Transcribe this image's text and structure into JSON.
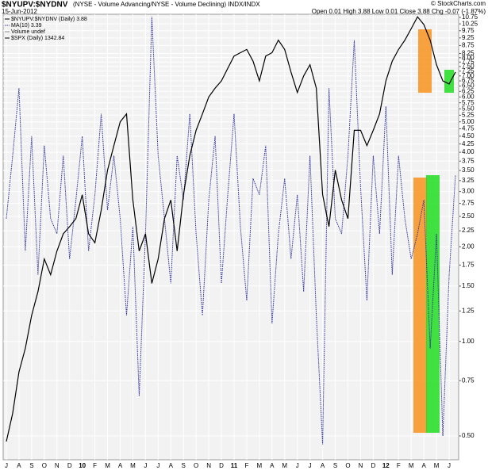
{
  "chart_data": {
    "type": "line",
    "title": "$NYUPV:$NYDNV",
    "subtitle": "(NYSE - Volume Advancing/NYSE - Volume Declining) INDX/INDX",
    "date": "15-Jun-2012",
    "quote": "Open 0.01 High 3.88 Low 0.01 Close 3.88 Chg -0.07 (-1.87%)",
    "source": "© StockCharts.com",
    "legend": [
      "$NYUPV:$NYDNV (Daily) 3.88",
      "Volume undef"
    ],
    "log_scale": true,
    "grid": true,
    "categories": [
      "J",
      null,
      "A",
      null,
      "S",
      null,
      "O",
      null,
      "N",
      null,
      "D",
      null,
      "10",
      null,
      "F",
      null,
      "M",
      null,
      "A",
      null,
      "M",
      null,
      "J",
      null,
      "J",
      null,
      "A",
      null,
      "S",
      null,
      "O",
      null,
      "N",
      null,
      "D",
      null,
      "11",
      null,
      "F",
      null,
      "M",
      null,
      "A",
      null,
      "M",
      null,
      "J",
      null,
      "J",
      null,
      "A",
      null,
      "S",
      null,
      "O",
      null,
      "N",
      null,
      "D",
      null,
      "12",
      null,
      "F",
      null,
      "M",
      null,
      "A",
      null,
      "M",
      null,
      "J",
      null
    ],
    "series": [
      {
        "name": "MA(10) 3.39",
        "color": "#33339a",
        "values": [
          2.46,
          3.9,
          6.4,
          1.94,
          4.5,
          1.63,
          4.2,
          2.46,
          2.2,
          3.9,
          1.83,
          2.82,
          4.5,
          1.94,
          2.93,
          5.3,
          2.62,
          3.9,
          2.46,
          1.21,
          2.32,
          0.67,
          2.2,
          10.8,
          3.9,
          2.46,
          1.53,
          3.9,
          2.82,
          5.3,
          2.2,
          1.21,
          2.82,
          4.5,
          1.53,
          2.93,
          5.3,
          2.32,
          1.35,
          3.3,
          2.93,
          4.2,
          1.14,
          2.2,
          3.3,
          1.83,
          2.93,
          1.44,
          3.9,
          1.21,
          0.47,
          6.4,
          2.46,
          2.2,
          3.9,
          9.1,
          3.1,
          1.35,
          3.9,
          2.2,
          5.6,
          1.63,
          3.9,
          2.46,
          1.83,
          2.2,
          2.82,
          0.95,
          2.2,
          0.5,
          1.63,
          3.39
        ]
      },
      {
        "name": "$SPX (Daily) 1342.84",
        "color": "#000000",
        "values": [
          0.48,
          0.59,
          0.8,
          0.95,
          1.21,
          1.44,
          1.83,
          1.63,
          1.94,
          2.2,
          2.32,
          2.46,
          2.93,
          2.2,
          2.06,
          2.62,
          3.51,
          4.2,
          5.0,
          5.3,
          2.82,
          1.94,
          2.2,
          1.53,
          1.83,
          2.46,
          2.82,
          1.94,
          2.93,
          3.9,
          4.7,
          5.3,
          6.0,
          6.4,
          6.75,
          7.4,
          8.1,
          8.3,
          8.5,
          7.8,
          6.75,
          8.1,
          8.3,
          9.1,
          8.5,
          7.2,
          6.2,
          7.0,
          7.6,
          6.4,
          2.93,
          2.32,
          3.51,
          2.82,
          2.46,
          4.7,
          4.7,
          4.2,
          4.7,
          5.3,
          6.75,
          7.8,
          8.5,
          9.1,
          9.9,
          10.8,
          10.2,
          9.1,
          7.6,
          6.75,
          6.6,
          7.2
        ]
      }
    ],
    "ylim": [
      0.42,
      11
    ],
    "yticks": [
      {
        "value": 0.5,
        "label": "0.50"
      },
      {
        "value": 0.75,
        "label": "0.75"
      },
      {
        "value": 1,
        "label": "1.00"
      },
      {
        "value": 1.25,
        "label": "1.25"
      },
      {
        "value": 1.5,
        "label": "1.50"
      },
      {
        "value": 1.75,
        "label": "1.75"
      },
      {
        "value": 2,
        "label": "2.00"
      },
      {
        "value": 2.25,
        "label": "2.25"
      },
      {
        "value": 2.5,
        "label": "2.50"
      },
      {
        "value": 2.75,
        "label": "2.75"
      },
      {
        "value": 3,
        "label": "3.00"
      },
      {
        "value": 3.25,
        "label": "3.25"
      },
      {
        "value": 3.5,
        "label": "3.50"
      },
      {
        "value": 3.75,
        "label": "3.75"
      },
      {
        "value": 4,
        "label": "4.00"
      },
      {
        "value": 4.25,
        "label": "4.25"
      },
      {
        "value": 4.5,
        "label": "4.50"
      },
      {
        "value": 4.75,
        "label": "4.75"
      },
      {
        "value": 5,
        "label": "5.00"
      },
      {
        "value": 5.25,
        "label": "5.25"
      },
      {
        "value": 5.5,
        "label": "5.50"
      },
      {
        "value": 5.75,
        "label": "5.75"
      },
      {
        "value": 6,
        "label": "6.00"
      },
      {
        "value": 6.25,
        "label": "6.25"
      },
      {
        "value": 6.5,
        "label": "6.50"
      },
      {
        "value": 6.75,
        "label": "6.75"
      },
      {
        "value": 7,
        "label": "7.00"
      },
      {
        "value": 7.25,
        "label": "7.25"
      },
      {
        "value": 7.5,
        "label": "7.50"
      },
      {
        "value": 7.75,
        "label": "7.75"
      },
      {
        "value": 8,
        "label": "8.00"
      },
      {
        "value": 8.25,
        "label": "8.25"
      },
      {
        "value": 8.75,
        "label": "8.75"
      },
      {
        "value": 9.25,
        "label": "9.25"
      },
      {
        "value": 9.75,
        "label": "9.75"
      },
      {
        "value": 10.25,
        "label": "10.25"
      },
      {
        "value": 10.75,
        "label": "10.75"
      }
    ]
  }
}
